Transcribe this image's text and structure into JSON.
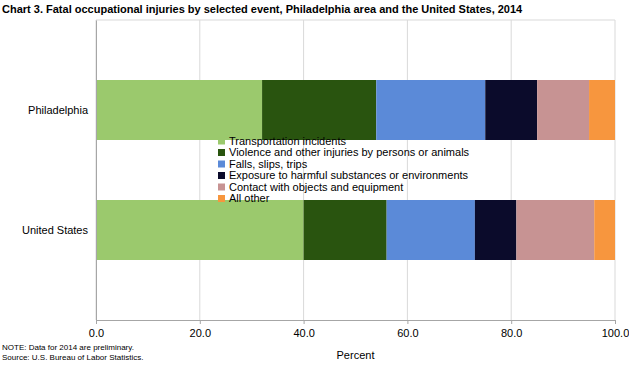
{
  "chart_data": {
    "type": "bar",
    "title": "Chart 3. Fatal occupational injuries by selected event, Philadelphia area and the United States, 2014",
    "x_label": "Percent",
    "annotations": [
      "NOTE: Data for 2014 are preliminary.",
      "Source: U.S. Bureau of Labor Statistics."
    ],
    "orientation": "horizontal",
    "stacked": true,
    "grid": true,
    "legend": "center",
    "categories": [
      "Philadelphia",
      "United States"
    ],
    "series": [
      {
        "name": "Transportation incidents",
        "color": "#9bc96d",
        "values": [
          32,
          40
        ]
      },
      {
        "name": "Violence and other injuries by persons or animals",
        "color": "#29540f",
        "values": [
          22,
          16
        ]
      },
      {
        "name": "Falls, slips, trips",
        "color": "#5b8ad8",
        "values": [
          21,
          17
        ]
      },
      {
        "name": "Exposure to harmful substances or environments",
        "color": "#0b0b2b",
        "values": [
          10,
          8
        ]
      },
      {
        "name": "Contact with objects and equipment",
        "color": "#c79393",
        "values": [
          10,
          15
        ]
      },
      {
        "name": "All other",
        "color": "#f7963e",
        "values": [
          5,
          4
        ]
      }
    ],
    "xlim": [
      0,
      100
    ],
    "xticks": [
      {
        "value": 0,
        "label": "0.0"
      },
      {
        "value": 20,
        "label": "20.0"
      },
      {
        "value": 40,
        "label": "40.0"
      },
      {
        "value": 60,
        "label": "60.0"
      },
      {
        "value": 80,
        "label": "80.0"
      },
      {
        "value": 100,
        "label": "100.0"
      }
    ]
  }
}
